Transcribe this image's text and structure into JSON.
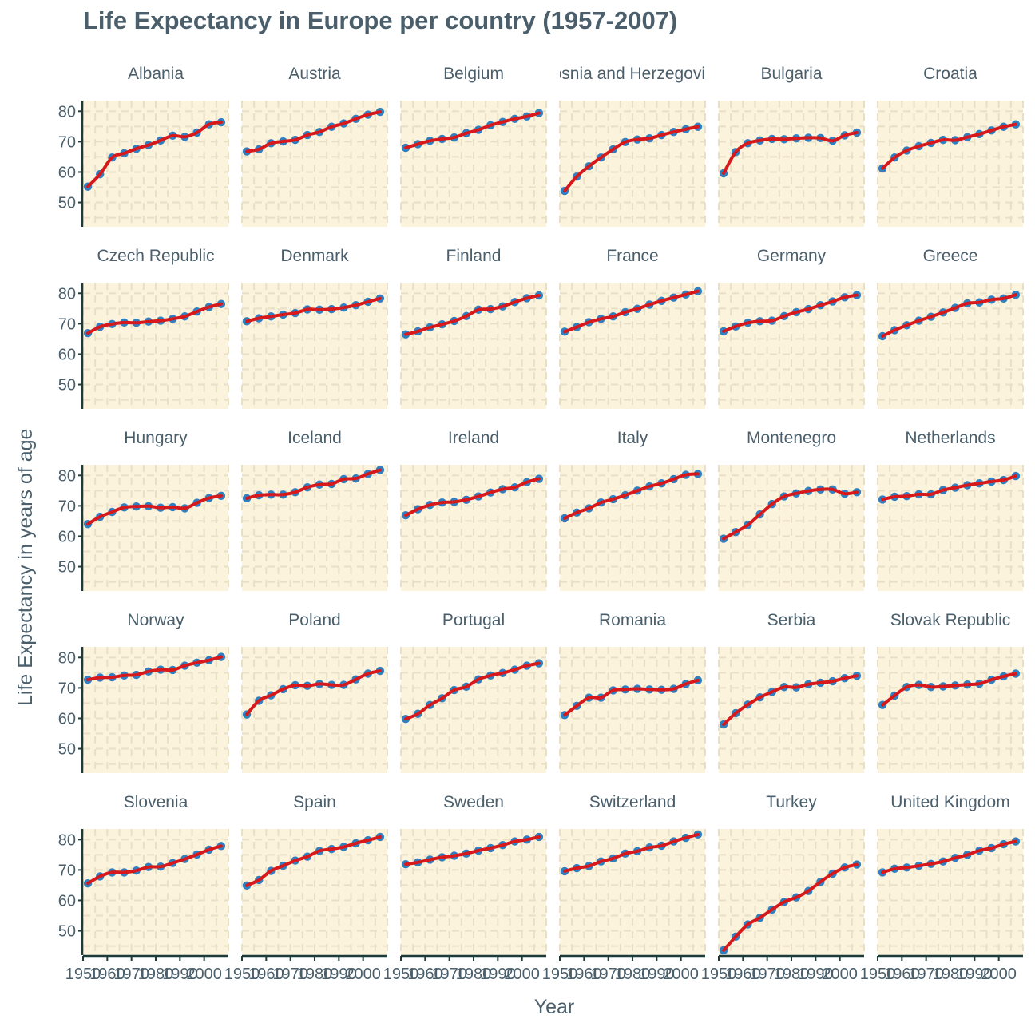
{
  "chart_data": {
    "type": "line",
    "title": "Life Expectancy in Europe per country (1957-2007)",
    "xlabel": "Year",
    "ylabel": "Life Expectancy in years of age",
    "x": [
      1952,
      1957,
      1962,
      1967,
      1972,
      1977,
      1982,
      1987,
      1992,
      1997,
      2002,
      2007
    ],
    "x_ticks": [
      1950,
      1960,
      1970,
      1980,
      1990,
      2000
    ],
    "x_tick_labels": [
      "1950",
      "1960",
      "1970",
      "1980",
      "1990",
      "2000"
    ],
    "xlim": [
      1950,
      2010
    ],
    "y_ticks": [
      50,
      60,
      70,
      80
    ],
    "ylim": [
      42,
      83.5
    ],
    "grid": true,
    "colors": {
      "points": "#2f7fc1",
      "smooth_line": "#d7191c",
      "panel_background": "#fcf3dc",
      "grid": "#e9dfc7",
      "text": "#4a5f6b",
      "axis": "#1d3b3b"
    },
    "panels": [
      {
        "name": "Albania",
        "values": [
          55.2,
          59.3,
          64.8,
          66.2,
          67.7,
          68.9,
          70.4,
          72.0,
          71.6,
          73.0,
          75.7,
          76.4
        ]
      },
      {
        "name": "Austria",
        "values": [
          66.8,
          67.5,
          69.5,
          70.1,
          70.6,
          72.2,
          73.2,
          74.9,
          76.0,
          77.5,
          78.9,
          79.8
        ]
      },
      {
        "name": "Belgium",
        "values": [
          68.0,
          69.2,
          70.3,
          70.9,
          71.4,
          72.8,
          73.9,
          75.4,
          76.5,
          77.5,
          78.3,
          79.4
        ]
      },
      {
        "name": "Bosnia and Herzegovina",
        "values": [
          53.8,
          58.5,
          61.9,
          64.8,
          67.5,
          69.9,
          70.7,
          71.1,
          72.2,
          73.2,
          74.1,
          74.9
        ]
      },
      {
        "name": "Bulgaria",
        "values": [
          59.6,
          66.6,
          69.5,
          70.4,
          70.9,
          70.8,
          71.1,
          71.3,
          71.2,
          70.3,
          72.1,
          73.0
        ]
      },
      {
        "name": "Croatia",
        "values": [
          61.2,
          64.8,
          67.1,
          68.5,
          69.6,
          70.6,
          70.5,
          71.5,
          72.5,
          73.7,
          74.9,
          75.7
        ]
      },
      {
        "name": "Czech Republic",
        "values": [
          66.9,
          69.0,
          69.9,
          70.4,
          70.3,
          70.7,
          71.0,
          71.6,
          72.4,
          74.0,
          75.5,
          76.5
        ]
      },
      {
        "name": "Denmark",
        "values": [
          70.8,
          71.8,
          72.4,
          73.0,
          73.5,
          74.7,
          74.6,
          74.8,
          75.3,
          76.1,
          77.2,
          78.3
        ]
      },
      {
        "name": "Finland",
        "values": [
          66.5,
          67.5,
          68.8,
          69.8,
          70.9,
          72.5,
          74.6,
          74.8,
          75.7,
          77.1,
          78.4,
          79.3
        ]
      },
      {
        "name": "France",
        "values": [
          67.4,
          68.9,
          70.5,
          71.6,
          72.4,
          73.8,
          74.9,
          76.3,
          77.5,
          78.6,
          79.6,
          80.7
        ]
      },
      {
        "name": "Germany",
        "values": [
          67.5,
          69.1,
          70.3,
          70.8,
          71.0,
          72.5,
          73.8,
          74.8,
          76.1,
          77.3,
          78.7,
          79.4
        ]
      },
      {
        "name": "Greece",
        "values": [
          65.9,
          67.9,
          69.5,
          71.0,
          72.3,
          73.7,
          75.2,
          76.7,
          77.0,
          77.9,
          78.3,
          79.5
        ]
      },
      {
        "name": "Hungary",
        "values": [
          64.0,
          66.4,
          68.0,
          69.5,
          69.8,
          69.9,
          69.4,
          69.6,
          69.2,
          71.0,
          72.6,
          73.3
        ]
      },
      {
        "name": "Iceland",
        "values": [
          72.5,
          73.5,
          73.7,
          73.7,
          74.5,
          76.1,
          77.0,
          77.2,
          78.8,
          79.0,
          80.5,
          81.8
        ]
      },
      {
        "name": "Ireland",
        "values": [
          66.9,
          68.9,
          70.3,
          71.1,
          71.3,
          72.0,
          73.1,
          74.4,
          75.5,
          76.1,
          77.8,
          78.9
        ]
      },
      {
        "name": "Italy",
        "values": [
          65.9,
          67.8,
          69.2,
          71.1,
          72.2,
          73.5,
          75.0,
          76.4,
          77.4,
          78.8,
          80.2,
          80.5
        ]
      },
      {
        "name": "Montenegro",
        "values": [
          59.2,
          61.4,
          63.7,
          67.2,
          70.6,
          73.1,
          74.1,
          74.9,
          75.4,
          75.4,
          74.0,
          74.5
        ]
      },
      {
        "name": "Netherlands",
        "values": [
          72.1,
          73.0,
          73.2,
          73.8,
          73.8,
          75.2,
          76.0,
          76.8,
          77.4,
          78.0,
          78.5,
          79.8
        ]
      },
      {
        "name": "Norway",
        "values": [
          72.7,
          73.4,
          73.5,
          74.1,
          74.3,
          75.4,
          76.0,
          75.9,
          77.3,
          78.3,
          79.1,
          80.2
        ]
      },
      {
        "name": "Poland",
        "values": [
          61.3,
          65.8,
          67.6,
          69.6,
          70.9,
          70.7,
          71.3,
          71.0,
          71.0,
          72.8,
          74.7,
          75.6
        ]
      },
      {
        "name": "Portugal",
        "values": [
          59.8,
          61.5,
          64.4,
          66.6,
          69.3,
          70.4,
          72.8,
          74.1,
          74.9,
          76.0,
          77.3,
          78.1
        ]
      },
      {
        "name": "Romania",
        "values": [
          61.1,
          64.1,
          66.8,
          66.8,
          69.2,
          69.5,
          69.7,
          69.5,
          69.4,
          69.7,
          71.3,
          72.5
        ]
      },
      {
        "name": "Serbia",
        "values": [
          58.0,
          61.7,
          64.5,
          66.9,
          68.7,
          70.3,
          70.2,
          71.2,
          71.7,
          72.2,
          73.2,
          74.0
        ]
      },
      {
        "name": "Slovak Republic",
        "values": [
          64.4,
          67.5,
          70.3,
          71.0,
          70.3,
          70.5,
          70.8,
          71.1,
          71.4,
          72.7,
          73.8,
          74.7
        ]
      },
      {
        "name": "Slovenia",
        "values": [
          65.6,
          67.9,
          69.2,
          69.2,
          69.8,
          70.97,
          71.1,
          72.3,
          73.6,
          75.1,
          76.7,
          77.9
        ]
      },
      {
        "name": "Spain",
        "values": [
          64.9,
          66.7,
          69.7,
          71.4,
          73.1,
          74.4,
          76.3,
          76.9,
          77.6,
          78.8,
          79.8,
          80.9
        ]
      },
      {
        "name": "Sweden",
        "values": [
          71.9,
          72.5,
          73.4,
          74.2,
          74.7,
          75.4,
          76.4,
          77.2,
          78.2,
          79.4,
          80.0,
          80.9
        ]
      },
      {
        "name": "Switzerland",
        "values": [
          69.6,
          70.6,
          71.3,
          72.8,
          73.8,
          75.4,
          76.2,
          77.4,
          78.0,
          79.4,
          80.6,
          81.7
        ]
      },
      {
        "name": "Turkey",
        "values": [
          43.6,
          48.1,
          52.1,
          54.3,
          57.0,
          59.5,
          61.0,
          63.1,
          66.1,
          68.8,
          70.8,
          71.8
        ]
      },
      {
        "name": "United Kingdom",
        "values": [
          69.2,
          70.4,
          70.8,
          71.4,
          72.0,
          72.8,
          74.0,
          75.0,
          76.4,
          77.2,
          78.5,
          79.4
        ]
      }
    ]
  }
}
